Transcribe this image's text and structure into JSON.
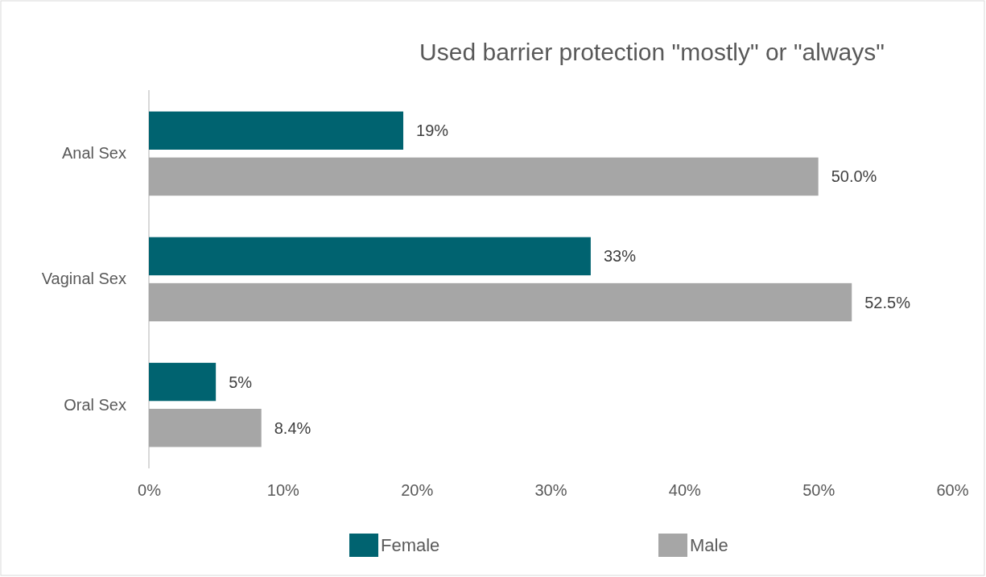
{
  "chart_data": {
    "type": "bar",
    "orientation": "horizontal",
    "title": "Used barrier protection \"mostly\" or \"always\"",
    "categories": [
      "Anal Sex",
      "Vaginal Sex",
      "Oral Sex"
    ],
    "series": [
      {
        "name": "Female",
        "color": "#006370",
        "values": [
          19,
          33,
          5
        ],
        "value_labels": [
          "19%",
          "33%",
          "5%"
        ]
      },
      {
        "name": "Male",
        "color": "#a6a6a6",
        "values": [
          50.0,
          52.5,
          8.4
        ],
        "value_labels": [
          "50.0%",
          "52.5%",
          "8.4%"
        ]
      }
    ],
    "xlim": [
      0,
      60
    ],
    "xticks": [
      {
        "value": 0,
        "label": "0%"
      },
      {
        "value": 10,
        "label": "10%"
      },
      {
        "value": 20,
        "label": "20%"
      },
      {
        "value": 30,
        "label": "30%"
      },
      {
        "value": 40,
        "label": "40%"
      },
      {
        "value": 50,
        "label": "50%"
      },
      {
        "value": 60,
        "label": "60%"
      }
    ],
    "grid": false,
    "legend": "bottom"
  }
}
